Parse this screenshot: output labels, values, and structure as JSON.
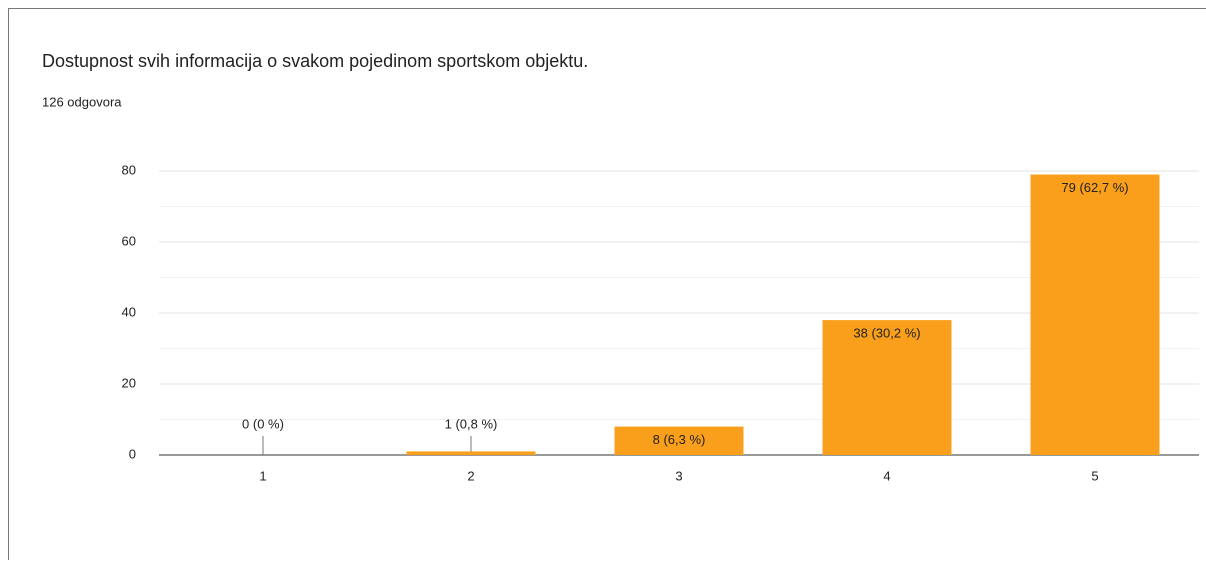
{
  "chart_data": {
    "type": "bar",
    "title": "Dostupnost svih informacija o svakom pojedinom sportskom objektu.",
    "subtitle": "126 odgovora",
    "categories": [
      "1",
      "2",
      "3",
      "4",
      "5"
    ],
    "values": [
      0,
      1,
      8,
      38,
      79
    ],
    "value_labels": [
      "0 (0 %)",
      "1 (0,8 %)",
      "8 (6,3 %)",
      "38 (30,2 %)",
      "79 (62,7 %)"
    ],
    "color": "#fa9f1b",
    "ylim": [
      0,
      80
    ],
    "yticks": [
      0,
      20,
      40,
      60,
      80
    ],
    "minor_yticks": [
      10,
      30,
      50,
      70
    ],
    "grid": true
  }
}
